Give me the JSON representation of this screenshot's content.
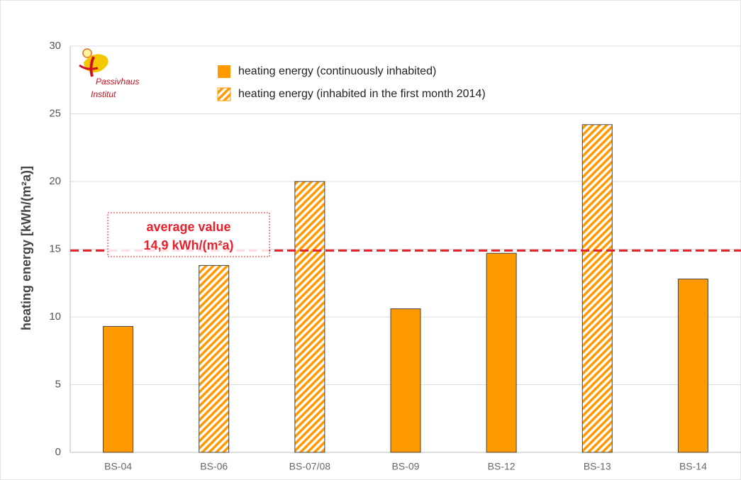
{
  "chart_data": {
    "type": "bar",
    "y_label": "heating energy [kWh/(m²a)]",
    "logo_text": [
      "Passivhaus",
      "Institut"
    ],
    "categories": [
      "BS-04",
      "BS-06",
      "BS-07/08",
      "BS-09",
      "BS-12",
      "BS-13",
      "BS-14"
    ],
    "series": [
      {
        "name": "heating energy (continuously inhabited)",
        "color": "#ff9900",
        "hatch": false,
        "values": [
          9.3,
          null,
          null,
          10.6,
          14.7,
          null,
          12.8
        ]
      },
      {
        "name": "heating energy  (inhabited in the first month 2014)",
        "color": "#ff9900",
        "hatch": true,
        "values": [
          null,
          13.8,
          20.0,
          null,
          null,
          24.2,
          null
        ]
      }
    ],
    "average": {
      "value": 14.9,
      "label": "average value",
      "value_label": "14,9 kWh/(m²a)",
      "color": "#e8202a"
    },
    "ylim": [
      0,
      30
    ],
    "yticks": [
      0,
      5,
      10,
      15,
      20,
      25,
      30
    ],
    "grid": true
  }
}
